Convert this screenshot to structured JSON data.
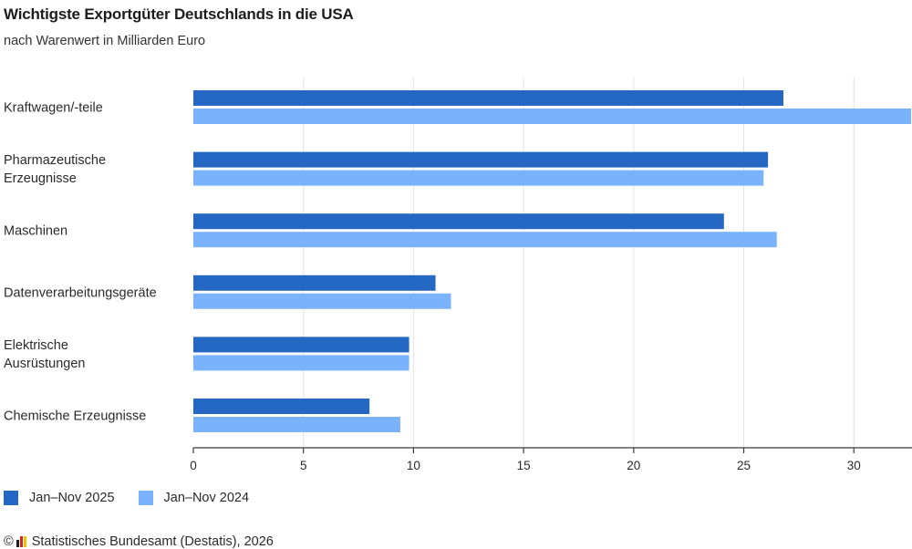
{
  "chart_data": {
    "type": "bar",
    "orientation": "horizontal",
    "title": "Wichtigste Exportgüter Deutschlands in die USA",
    "subtitle": "nach Warenwert in Milliarden Euro",
    "xlabel": "",
    "ylabel": "",
    "categories": [
      [
        "Kraftwagen/-teile"
      ],
      [
        "Pharmazeutische",
        "Erzeugnisse"
      ],
      [
        "Maschinen"
      ],
      [
        "Datenverarbeitungsgeräte"
      ],
      [
        "Elektrische",
        "Ausrüstungen"
      ],
      [
        "Chemische Erzeugnisse"
      ]
    ],
    "series": [
      {
        "name": "Jan–Nov 2025",
        "color": "#2468c3",
        "values": [
          26.8,
          26.1,
          24.1,
          11.0,
          9.8,
          8.0
        ]
      },
      {
        "name": "Jan–Nov 2024",
        "color": "#7ab3fb",
        "values": [
          32.6,
          25.9,
          26.5,
          11.7,
          9.8,
          9.4
        ]
      }
    ],
    "xlim": [
      0,
      32.6
    ],
    "xticks": [
      0,
      5,
      10,
      15,
      20,
      25,
      30
    ],
    "grid": true,
    "legend_position": "bottom-left"
  },
  "source": {
    "copyright_symbol": "©",
    "text": "Statistisches Bundesamt (Destatis), 2026",
    "logo_colors": [
      "#1d1d1d",
      "#d9261c",
      "#f5c400"
    ]
  }
}
